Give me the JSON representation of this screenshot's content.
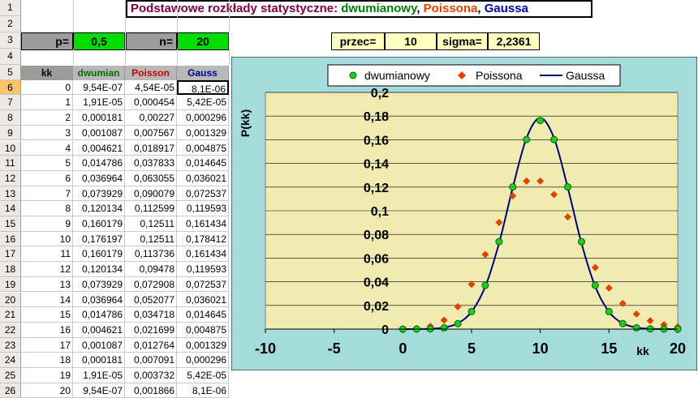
{
  "title": {
    "prefix": "Podstawowe rozkłady statystyczne: ",
    "b": "dwumianowy",
    "sep1": ", ",
    "p": "Poissona",
    "sep2": ", ",
    "g": "Gaussa"
  },
  "params": {
    "p_label": "p=",
    "p_value": "0,5",
    "n_label": "n=",
    "n_value": "20",
    "przec_label": "przec=",
    "przec_value": "10",
    "sigma_label": "sigma=",
    "sigma_value": "2,2361"
  },
  "row_numbers": [
    "1",
    "2",
    "3",
    "4",
    "5",
    "6",
    "7",
    "8",
    "9",
    "10",
    "11",
    "12",
    "13",
    "14",
    "15",
    "16",
    "17",
    "18",
    "19",
    "20",
    "21",
    "22",
    "23",
    "24",
    "25",
    "26"
  ],
  "table": {
    "headers": [
      "kk",
      "dwumian",
      "Poisson",
      "Gauss"
    ],
    "rows": [
      [
        "0",
        "9,54E-07",
        "4,54E-05",
        "8,1E-06"
      ],
      [
        "1",
        "1,91E-05",
        "0,000454",
        "5,42E-05"
      ],
      [
        "2",
        "0,000181",
        "0,00227",
        "0,000296"
      ],
      [
        "3",
        "0,001087",
        "0,007567",
        "0,001329"
      ],
      [
        "4",
        "0,004621",
        "0,018917",
        "0,004875"
      ],
      [
        "5",
        "0,014786",
        "0,037833",
        "0,014645"
      ],
      [
        "6",
        "0,036964",
        "0,063055",
        "0,036021"
      ],
      [
        "7",
        "0,073929",
        "0,090079",
        "0,072537"
      ],
      [
        "8",
        "0,120134",
        "0,112599",
        "0,119593"
      ],
      [
        "9",
        "0,160179",
        "0,12511",
        "0,161434"
      ],
      [
        "10",
        "0,176197",
        "0,12511",
        "0,178412"
      ],
      [
        "11",
        "0,160179",
        "0,113736",
        "0,161434"
      ],
      [
        "12",
        "0,120134",
        "0,09478",
        "0,119593"
      ],
      [
        "13",
        "0,073929",
        "0,072908",
        "0,072537"
      ],
      [
        "14",
        "0,036964",
        "0,052077",
        "0,036021"
      ],
      [
        "15",
        "0,014786",
        "0,034718",
        "0,014645"
      ],
      [
        "16",
        "0,004621",
        "0,021699",
        "0,004875"
      ],
      [
        "17",
        "0,001087",
        "0,012764",
        "0,001329"
      ],
      [
        "18",
        "0,000181",
        "0,007091",
        "0,000296"
      ],
      [
        "19",
        "1,91E-05",
        "0,003732",
        "5,42E-05"
      ],
      [
        "20",
        "9,54E-07",
        "0,001866",
        "8,1E-06"
      ]
    ]
  },
  "colors": {
    "binomial": "#00aa00",
    "poisson": "#dd4400",
    "gauss": "#00007f",
    "plot_bg": "#f0ebb0",
    "chart_bg": "#a4dcdc",
    "green_cell": "#00dd00",
    "gray_cell": "#9c9c9c"
  },
  "chart_data": {
    "type": "scatter",
    "ylabel": "P(kk)",
    "xlabel": "kk",
    "xlim": [
      -10,
      20
    ],
    "ylim": [
      0,
      0.2
    ],
    "xticks": [
      "-10",
      "-5",
      "0",
      "5",
      "10",
      "15",
      "20"
    ],
    "yticks": [
      "0",
      "0,02",
      "0,04",
      "0,06",
      "0,08",
      "0,1",
      "0,12",
      "0,14",
      "0,16",
      "0,18",
      "0,2"
    ],
    "legend_position": "top",
    "grid": "horizontal",
    "series": [
      {
        "name": "dwumianowy",
        "marker": "circle",
        "x": [
          0,
          1,
          2,
          3,
          4,
          5,
          6,
          7,
          8,
          9,
          10,
          11,
          12,
          13,
          14,
          15,
          16,
          17,
          18,
          19,
          20
        ],
        "y": [
          9.54e-07,
          1.91e-05,
          0.000181,
          0.001087,
          0.004621,
          0.014786,
          0.036964,
          0.073929,
          0.120134,
          0.160179,
          0.176197,
          0.160179,
          0.120134,
          0.073929,
          0.036964,
          0.014786,
          0.004621,
          0.001087,
          0.000181,
          1.91e-05,
          9.54e-07
        ]
      },
      {
        "name": "Poissona",
        "marker": "diamond",
        "x": [
          0,
          1,
          2,
          3,
          4,
          5,
          6,
          7,
          8,
          9,
          10,
          11,
          12,
          13,
          14,
          15,
          16,
          17,
          18,
          19,
          20
        ],
        "y": [
          4.54e-05,
          0.000454,
          0.00227,
          0.007567,
          0.018917,
          0.037833,
          0.063055,
          0.090079,
          0.112599,
          0.12511,
          0.12511,
          0.113736,
          0.09478,
          0.072908,
          0.052077,
          0.034718,
          0.021699,
          0.012764,
          0.007091,
          0.003732,
          0.001866
        ]
      },
      {
        "name": "Gaussa",
        "marker": "line",
        "x": [
          0,
          1,
          2,
          3,
          4,
          5,
          6,
          7,
          8,
          9,
          10,
          11,
          12,
          13,
          14,
          15,
          16,
          17,
          18,
          19,
          20
        ],
        "y": [
          8.1e-06,
          5.42e-05,
          0.000296,
          0.001329,
          0.004875,
          0.014645,
          0.036021,
          0.072537,
          0.119593,
          0.161434,
          0.178412,
          0.161434,
          0.119593,
          0.072537,
          0.036021,
          0.014645,
          0.004875,
          0.001329,
          0.000296,
          5.42e-05,
          8.1e-06
        ]
      }
    ]
  }
}
